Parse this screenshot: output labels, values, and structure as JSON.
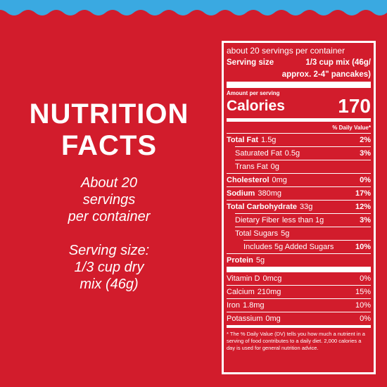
{
  "left": {
    "title": [
      "NUTRITION",
      "FACTS"
    ],
    "servings": [
      "About 20",
      "servings",
      "per container"
    ],
    "serving_size": [
      "Serving size:",
      "1/3 cup dry",
      "mix (46g)"
    ]
  },
  "label": {
    "servings_per_container": "about 20 servings per container",
    "serving_size": {
      "label": "Serving size",
      "value": [
        "1/3 cup mix (46g/",
        "approx. 2-4\" pancakes)"
      ]
    },
    "amount_per_serving": "Amount per serving",
    "calories": {
      "label": "Calories",
      "value": 170
    },
    "dv_header": "% Daily Value*",
    "nutrients": [
      {
        "name": "Total Fat",
        "amount": "1.5g",
        "dv": "2%"
      },
      {
        "name": "Saturated Fat",
        "amount": "0.5g",
        "dv": "3%"
      },
      {
        "name": "Trans Fat",
        "amount": "0g"
      },
      {
        "name": "Cholesterol",
        "amount": "0mg",
        "dv": "0%"
      },
      {
        "name": "Sodium",
        "amount": "380mg",
        "dv": "17%"
      },
      {
        "name": "Total Carbohydrate",
        "amount": "33g",
        "dv": "12%"
      },
      {
        "name": "Dietary Fiber",
        "amount": "less than 1g",
        "dv": "3%"
      },
      {
        "name": "Total Sugars",
        "amount": "5g"
      },
      {
        "name": "Includes 5g Added Sugars",
        "dv": "10%"
      },
      {
        "name": "Protein",
        "amount": "5g"
      }
    ],
    "vitamins": [
      {
        "name": "Vitamin D",
        "amount": "0mcg",
        "dv": "0%"
      },
      {
        "name": "Calcium",
        "amount": "210mg",
        "dv": "15%"
      },
      {
        "name": "Iron",
        "amount": "1.8mg",
        "dv": "10%"
      },
      {
        "name": "Potassium",
        "amount": "0mg",
        "dv": "0%"
      }
    ],
    "footnote": "* The % Daily Value (DV) tells you how much a nutrient in a serving of food contributes to a daily diet. 2,000 calories a day is used for general nutrition advice."
  }
}
